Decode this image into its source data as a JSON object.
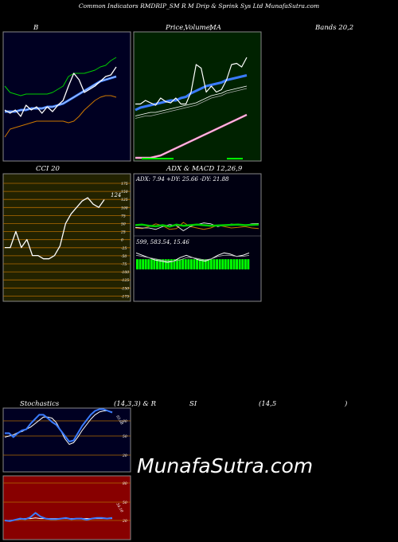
{
  "header": {
    "title": "Common Indicators RMDRIP_SM R M Drip & Sprink Sys Ltd MunafaSutra.com"
  },
  "labels": {
    "bb": "B",
    "price": "Price,",
    "volume": "Volume,",
    "ma": "MA",
    "bands": "Bands 20,2",
    "cci": "CCI 20",
    "adx_macd": "ADX & MACD 12,26,9",
    "stoch_a": "Stochastics",
    "stoch_b": "(14,3,3) & R",
    "stoch_c": "SI",
    "stoch_d": "(14,5",
    "stoch_e": ")"
  },
  "watermark": "MunafaSutra.com",
  "colors": {
    "bb_bg": "#000022",
    "price_bg": "#002200",
    "cci_bg": "#222200",
    "adx_bg": "#000011",
    "stoch_bg": "#000022",
    "rsi_bg": "#880000",
    "white": "#ffffff",
    "blue": "#3a7bff",
    "green": "#00cc00",
    "orange": "#cc7700",
    "pink": "#ff88cc",
    "grey": "#aaaaaa"
  },
  "chart_data": [
    {
      "type": "line",
      "name": "bollinger",
      "series": [
        {
          "values": [
            45,
            43,
            45,
            41,
            48,
            45,
            47,
            43,
            47,
            44,
            48,
            51,
            60,
            68,
            64,
            56,
            58,
            60,
            63,
            66,
            67,
            72
          ]
        },
        {
          "values": [
            44,
            44,
            44,
            45,
            45,
            46,
            46,
            46,
            47,
            47,
            48,
            49,
            51,
            53,
            55,
            57,
            59,
            61,
            63,
            64,
            65,
            66
          ]
        },
        {
          "values": [
            60,
            56,
            55,
            54,
            55,
            55,
            55,
            55,
            55,
            56,
            58,
            60,
            66,
            68,
            68,
            68,
            69,
            70,
            72,
            73,
            76,
            78
          ]
        },
        {
          "values": [
            28,
            33,
            34,
            35,
            36,
            37,
            38,
            38,
            38,
            38,
            38,
            38,
            37,
            38,
            41,
            45,
            48,
            51,
            53,
            54,
            54,
            53
          ]
        }
      ],
      "ylim": [
        20,
        90
      ]
    },
    {
      "type": "line",
      "name": "price-volume-ma",
      "series": [
        {
          "values": [
            45,
            45,
            48,
            46,
            44,
            50,
            47,
            46,
            50,
            45,
            45,
            55,
            78,
            75,
            55,
            60,
            55,
            57,
            65,
            78,
            79,
            76,
            84
          ]
        },
        {
          "values": [
            40,
            42,
            43,
            44,
            45,
            46,
            47,
            48,
            48,
            50,
            51,
            54,
            56,
            58,
            60,
            61,
            62,
            63,
            65,
            66,
            67,
            68,
            69
          ]
        },
        {
          "values": [
            35,
            36,
            37,
            38,
            38,
            39,
            40,
            41,
            42,
            43,
            44,
            45,
            46,
            48,
            50,
            52,
            53,
            54,
            56,
            57,
            58,
            59,
            60
          ]
        },
        {
          "values": [
            33,
            34,
            35,
            35,
            36,
            37,
            38,
            39,
            40,
            41,
            42,
            43,
            44,
            46,
            48,
            50,
            51,
            52,
            54,
            55,
            56,
            57,
            58
          ]
        },
        {
          "values": [
            0,
            0,
            0,
            0,
            1,
            2,
            4,
            6,
            8,
            10,
            12,
            14,
            16,
            18,
            20,
            22,
            24,
            26,
            28,
            30,
            32,
            34,
            36
          ]
        }
      ],
      "ylim": [
        0,
        100
      ]
    },
    {
      "type": "line",
      "name": "cci",
      "value_label": "124",
      "ticks": [
        "175",
        "150",
        "125",
        "100",
        "75",
        "50",
        "25",
        "0",
        "-25",
        "-50",
        "-75",
        "-100",
        "-125",
        "-150",
        "-175"
      ],
      "values": [
        -25,
        -25,
        25,
        -25,
        0,
        -50,
        -50,
        -60,
        -60,
        -50,
        -20,
        50,
        80,
        100,
        120,
        130,
        110,
        100,
        124
      ],
      "ylim": [
        -175,
        175
      ]
    },
    {
      "type": "line",
      "name": "adx-macd",
      "adx_text": "ADX: 7.94  +DY: 25.66  -DY: 21.88",
      "macd_text": "599,  583.54,  15.46",
      "adx_series": [
        {
          "values": [
            50,
            52,
            48,
            46,
            50,
            45,
            52,
            48,
            50,
            52,
            50,
            48,
            49,
            50,
            51,
            52,
            50,
            51,
            52
          ]
        },
        {
          "values": [
            40,
            38,
            45,
            55,
            48,
            35,
            38,
            60,
            45,
            40,
            35,
            40,
            50,
            45,
            40,
            42,
            45,
            40,
            38
          ]
        },
        {
          "values": [
            42,
            40,
            40,
            35,
            45,
            52,
            48,
            30,
            45,
            52,
            58,
            55,
            45,
            50,
            54,
            52,
            50,
            55,
            56
          ]
        }
      ],
      "macd_series": [
        {
          "values": [
            10,
            8,
            6,
            4,
            3,
            2,
            3,
            6,
            8,
            6,
            4,
            3,
            5,
            8,
            10,
            9,
            7,
            8,
            10
          ]
        },
        {
          "values": [
            8,
            7,
            6,
            5,
            4,
            3,
            3,
            4,
            6,
            6,
            5,
            4,
            5,
            7,
            8,
            8,
            7,
            7,
            8
          ]
        }
      ],
      "histogram": [
        8,
        8,
        8,
        8,
        8,
        8,
        8,
        8,
        8,
        8,
        8,
        8,
        8,
        8,
        8,
        8,
        8,
        8,
        8,
        8,
        8,
        8,
        8,
        8,
        8,
        8,
        8,
        8,
        8,
        8,
        8,
        8,
        8,
        8,
        8,
        8,
        8,
        8,
        8,
        8
      ]
    },
    {
      "type": "line",
      "name": "stochastics",
      "ticks": [
        "80",
        "50",
        "20"
      ],
      "value_label": "93.08",
      "series": [
        {
          "values": [
            55,
            55,
            48,
            55,
            60,
            62,
            72,
            80,
            88,
            88,
            82,
            75,
            70,
            60,
            50,
            40,
            42,
            55,
            68,
            78,
            88,
            95,
            98,
            98,
            95,
            92
          ]
        },
        {
          "values": [
            48,
            50,
            52,
            56,
            58,
            62,
            66,
            72,
            78,
            84,
            84,
            82,
            74,
            60,
            45,
            35,
            38,
            48,
            60,
            70,
            80,
            88,
            93,
            95,
            95,
            93
          ]
        }
      ],
      "ylim": [
        0,
        100
      ]
    },
    {
      "type": "line",
      "name": "rsi",
      "ticks": [
        "80",
        "50",
        "20"
      ],
      "value_label": "34.10",
      "series": [
        {
          "values": [
            30,
            29,
            31,
            33,
            32,
            35,
            42,
            36,
            33,
            32,
            32,
            33,
            34,
            32,
            33,
            33,
            31,
            33,
            34,
            34,
            33,
            34
          ]
        },
        {
          "values": [
            30,
            30,
            31,
            32,
            33,
            33,
            34,
            33,
            33,
            33,
            33,
            33,
            33,
            33,
            33,
            33,
            33,
            33,
            33,
            33,
            33,
            33
          ]
        }
      ],
      "ylim": [
        0,
        100
      ]
    }
  ]
}
